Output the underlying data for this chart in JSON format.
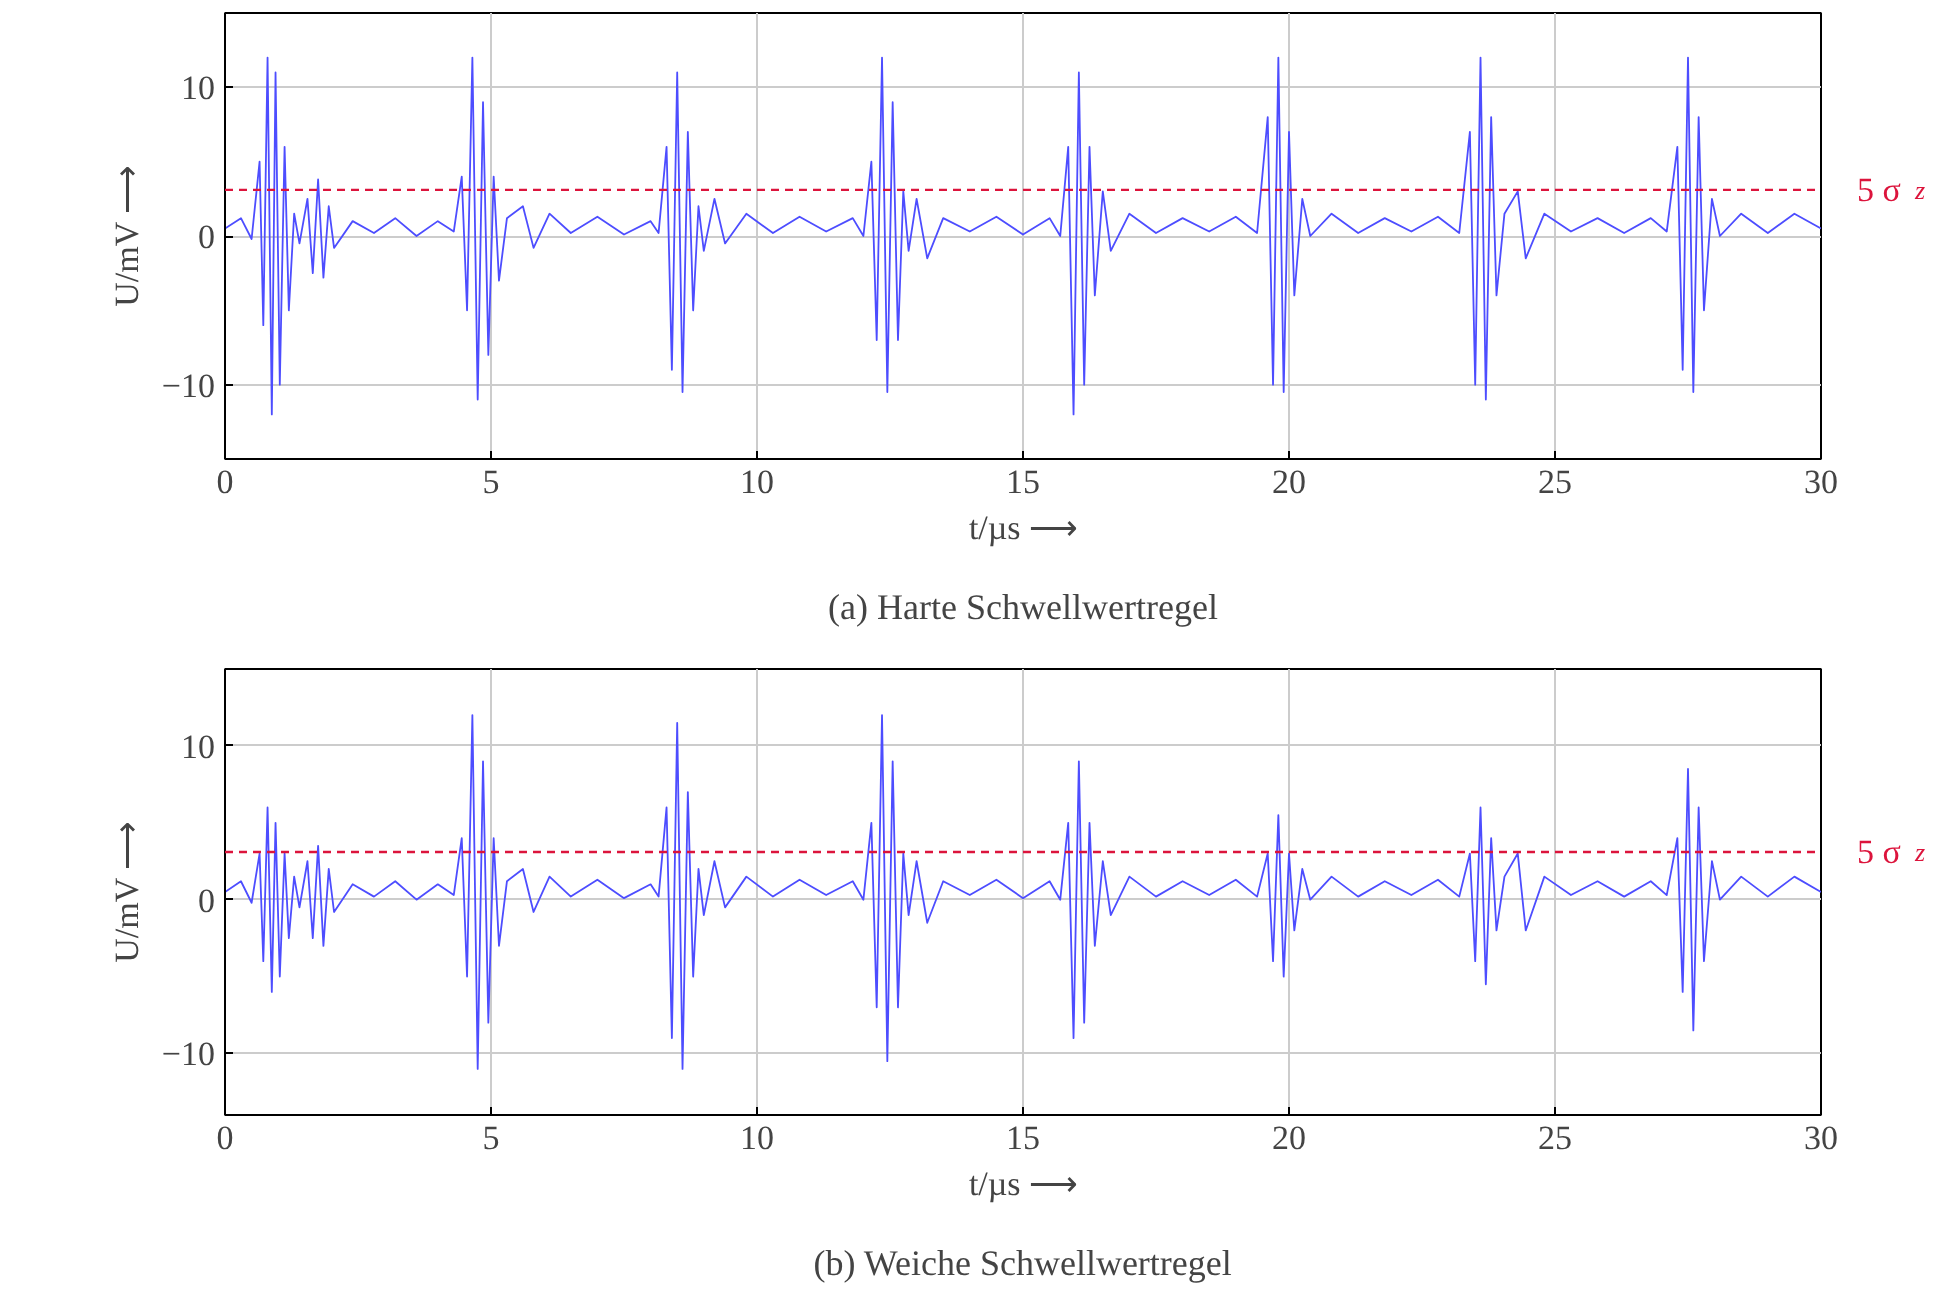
{
  "chart_data": [
    {
      "type": "line",
      "title": "(a) Harte Schwellwertregel",
      "xlabel": "t/µs ⟶",
      "ylabel": "U/mV ⟶",
      "xlim": [
        0,
        30
      ],
      "xticks": [
        0,
        5,
        10,
        15,
        20,
        25,
        30
      ],
      "ylim": [
        -15,
        15
      ],
      "yticks": [
        {
          "value": -10,
          "label": "−10"
        },
        {
          "value": 0,
          "label": "0"
        },
        {
          "value": 10,
          "label": "10"
        }
      ],
      "grid": true,
      "marker": "none",
      "line_style": "solid",
      "ref_lines": [
        {
          "axis": "y",
          "value": 3.1,
          "label": "5 σ$_{z}$",
          "color": "#dc143c",
          "line_style": "dashed"
        }
      ],
      "series": [
        {
          "color": "#4d4dff",
          "x": [
            0.0,
            0.3,
            0.5,
            0.65,
            0.72,
            0.8,
            0.88,
            0.95,
            1.03,
            1.12,
            1.2,
            1.3,
            1.4,
            1.55,
            1.65,
            1.75,
            1.85,
            1.95,
            2.05,
            2.4,
            2.8,
            3.2,
            3.6,
            4.0,
            4.3,
            4.45,
            4.55,
            4.65,
            4.75,
            4.85,
            4.95,
            5.05,
            5.15,
            5.3,
            5.6,
            5.8,
            6.1,
            6.5,
            7.0,
            7.5,
            8.0,
            8.15,
            8.3,
            8.4,
            8.5,
            8.6,
            8.7,
            8.8,
            8.9,
            9.0,
            9.2,
            9.4,
            9.8,
            10.3,
            10.8,
            11.3,
            11.8,
            12.0,
            12.15,
            12.25,
            12.35,
            12.45,
            12.55,
            12.65,
            12.75,
            12.85,
            13.0,
            13.2,
            13.5,
            14.0,
            14.5,
            15.0,
            15.5,
            15.7,
            15.85,
            15.95,
            16.05,
            16.15,
            16.25,
            16.35,
            16.5,
            16.65,
            17.0,
            17.5,
            18.0,
            18.5,
            19.0,
            19.4,
            19.6,
            19.7,
            19.8,
            19.9,
            20.0,
            20.1,
            20.25,
            20.4,
            20.8,
            21.3,
            21.8,
            22.3,
            22.8,
            23.2,
            23.4,
            23.5,
            23.6,
            23.7,
            23.8,
            23.9,
            24.05,
            24.3,
            24.45,
            24.8,
            25.3,
            25.8,
            26.3,
            26.8,
            27.1,
            27.3,
            27.4,
            27.5,
            27.6,
            27.7,
            27.8,
            27.95,
            28.1,
            28.5,
            29.0,
            29.5,
            30.0
          ],
          "values": [
            0.5,
            1.2,
            -0.2,
            5,
            -6,
            12,
            -12,
            11,
            -10,
            6,
            -5,
            1.5,
            -0.5,
            2.5,
            -2.5,
            3.8,
            -2.8,
            2,
            -0.8,
            1,
            0.2,
            1.2,
            0,
            1,
            0.3,
            4,
            -5,
            12,
            -11,
            9,
            -8,
            4,
            -3,
            1.2,
            2,
            -0.8,
            1.5,
            0.2,
            1.3,
            0.1,
            1,
            0.2,
            6,
            -9,
            11,
            -10.5,
            7,
            -5,
            2,
            -1,
            2.5,
            -0.5,
            1.5,
            0.2,
            1.3,
            0.3,
            1.2,
            0,
            5,
            -7,
            12,
            -10.5,
            9,
            -7,
            3,
            -1,
            2.5,
            -1.5,
            1.2,
            0.3,
            1.3,
            0.1,
            1.2,
            0,
            6,
            -12,
            11,
            -10,
            6,
            -4,
            3,
            -1,
            1.5,
            0.2,
            1.2,
            0.3,
            1.3,
            0.2,
            8,
            -10,
            12,
            -10.5,
            7,
            -4,
            2.5,
            0,
            1.5,
            0.2,
            1.2,
            0.3,
            1.3,
            0.2,
            7,
            -10,
            12,
            -11,
            8,
            -4,
            1.5,
            3,
            -1.5,
            1.5,
            0.3,
            1.2,
            0.2,
            1.2,
            0.3,
            6,
            -9,
            12,
            -10.5,
            8,
            -5,
            2.5,
            0,
            1.5,
            0.2,
            1.5,
            0.5
          ]
        }
      ]
    },
    {
      "type": "line",
      "title": "(b) Weiche Schwellwertregel",
      "xlabel": "t/µs ⟶",
      "ylabel": "U/mV ⟶",
      "xlim": [
        0,
        30
      ],
      "xticks": [
        0,
        5,
        10,
        15,
        20,
        25,
        30
      ],
      "ylim": [
        -14,
        15
      ],
      "yticks": [
        {
          "value": -10,
          "label": "−10"
        },
        {
          "value": 0,
          "label": "0"
        },
        {
          "value": 10,
          "label": "10"
        }
      ],
      "grid": true,
      "marker": "none",
      "line_style": "solid",
      "ref_lines": [
        {
          "axis": "y",
          "value": 3.1,
          "label": "5 σ$_{z}$",
          "color": "#dc143c",
          "line_style": "dashed"
        }
      ],
      "series": [
        {
          "color": "#4d4dff",
          "x": [
            0.0,
            0.3,
            0.5,
            0.65,
            0.72,
            0.8,
            0.88,
            0.95,
            1.03,
            1.12,
            1.2,
            1.3,
            1.4,
            1.55,
            1.65,
            1.75,
            1.85,
            1.95,
            2.05,
            2.4,
            2.8,
            3.2,
            3.6,
            4.0,
            4.3,
            4.45,
            4.55,
            4.65,
            4.75,
            4.85,
            4.95,
            5.05,
            5.15,
            5.3,
            5.6,
            5.8,
            6.1,
            6.5,
            7.0,
            7.5,
            8.0,
            8.15,
            8.3,
            8.4,
            8.5,
            8.6,
            8.7,
            8.8,
            8.9,
            9.0,
            9.2,
            9.4,
            9.8,
            10.3,
            10.8,
            11.3,
            11.8,
            12.0,
            12.15,
            12.25,
            12.35,
            12.45,
            12.55,
            12.65,
            12.75,
            12.85,
            13.0,
            13.2,
            13.5,
            14.0,
            14.5,
            15.0,
            15.5,
            15.7,
            15.85,
            15.95,
            16.05,
            16.15,
            16.25,
            16.35,
            16.5,
            16.65,
            17.0,
            17.5,
            18.0,
            18.5,
            19.0,
            19.4,
            19.6,
            19.7,
            19.8,
            19.9,
            20.0,
            20.1,
            20.25,
            20.4,
            20.8,
            21.3,
            21.8,
            22.3,
            22.8,
            23.2,
            23.4,
            23.5,
            23.6,
            23.7,
            23.8,
            23.9,
            24.05,
            24.3,
            24.45,
            24.8,
            25.3,
            25.8,
            26.3,
            26.8,
            27.1,
            27.3,
            27.4,
            27.5,
            27.6,
            27.7,
            27.8,
            27.95,
            28.1,
            28.5,
            29.0,
            29.5,
            30.0
          ],
          "values": [
            0.5,
            1.2,
            -0.2,
            3,
            -4,
            6,
            -6,
            5,
            -5,
            3,
            -2.5,
            1.5,
            -0.5,
            2.5,
            -2.5,
            3.5,
            -3,
            2,
            -0.8,
            1,
            0.2,
            1.2,
            0,
            1,
            0.3,
            4,
            -5,
            12,
            -11,
            9,
            -8,
            4,
            -3,
            1.2,
            2,
            -0.8,
            1.5,
            0.2,
            1.3,
            0.1,
            1,
            0.2,
            6,
            -9,
            11.5,
            -11,
            7,
            -5,
            2,
            -1,
            2.5,
            -0.5,
            1.5,
            0.2,
            1.3,
            0.3,
            1.2,
            0,
            5,
            -7,
            12,
            -10.5,
            9,
            -7,
            3,
            -1,
            2.5,
            -1.5,
            1.2,
            0.3,
            1.3,
            0.1,
            1.2,
            0,
            5,
            -9,
            9,
            -8,
            5,
            -3,
            2.5,
            -1,
            1.5,
            0.2,
            1.2,
            0.3,
            1.3,
            0.2,
            3,
            -4,
            5.5,
            -5,
            3,
            -2,
            2,
            0,
            1.5,
            0.2,
            1.2,
            0.3,
            1.3,
            0.2,
            3,
            -4,
            6,
            -5.5,
            4,
            -2,
            1.5,
            3,
            -2,
            1.5,
            0.3,
            1.2,
            0.2,
            1.2,
            0.3,
            4,
            -6,
            8.5,
            -8.5,
            6,
            -4,
            2.5,
            0,
            1.5,
            0.2,
            1.5,
            0.5
          ]
        }
      ]
    }
  ]
}
